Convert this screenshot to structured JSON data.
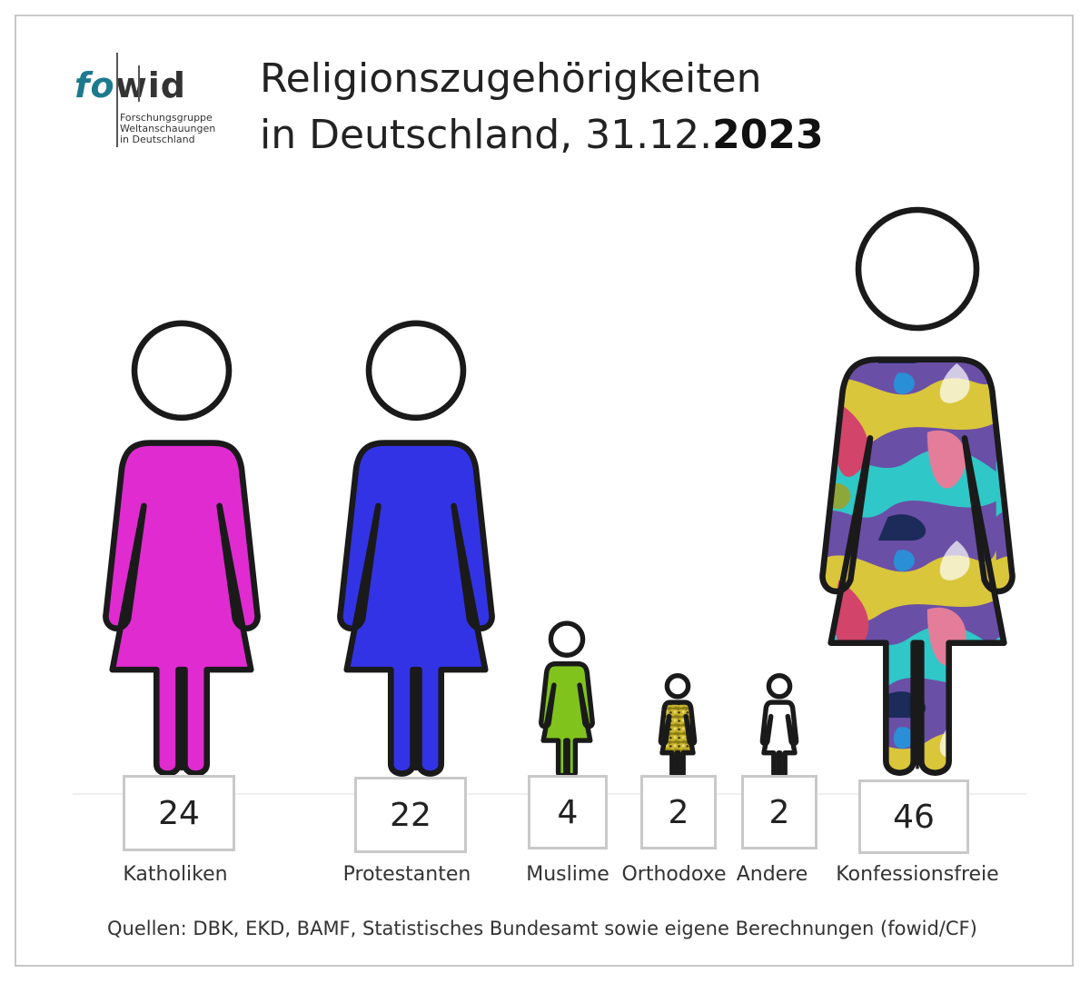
{
  "logo": {
    "word_fo": "fo",
    "word_wid": "wid",
    "lines": [
      "Forschungsgruppe",
      "Weltanschauungen",
      "in Deutschland"
    ]
  },
  "title": {
    "line1": "Religionszugehörigkeiten",
    "line2_prefix": "in Deutschland, 31.12.",
    "line2_year": "2023"
  },
  "chart_data": {
    "type": "pictogram",
    "title": "Religionszugehörigkeiten in Deutschland, 31.12.2023",
    "categories": [
      "Katholiken",
      "Protestanten",
      "Muslime",
      "Orthodoxe",
      "Andere",
      "Konfessionsfreie"
    ],
    "values": [
      24,
      22,
      4,
      2,
      2,
      46
    ],
    "value_labels": [
      "24",
      "22",
      "4",
      "2",
      "2",
      "46"
    ],
    "colors": [
      "#e02bd0",
      "#3333e6",
      "#7fc31c",
      "#c9b62a",
      "#ffffff",
      "pattern"
    ]
  },
  "source": "Quellen: DBK, EKD, BAMF, Statistisches Bundesamt sowie eigene Berechnungen (fowid/CF)"
}
